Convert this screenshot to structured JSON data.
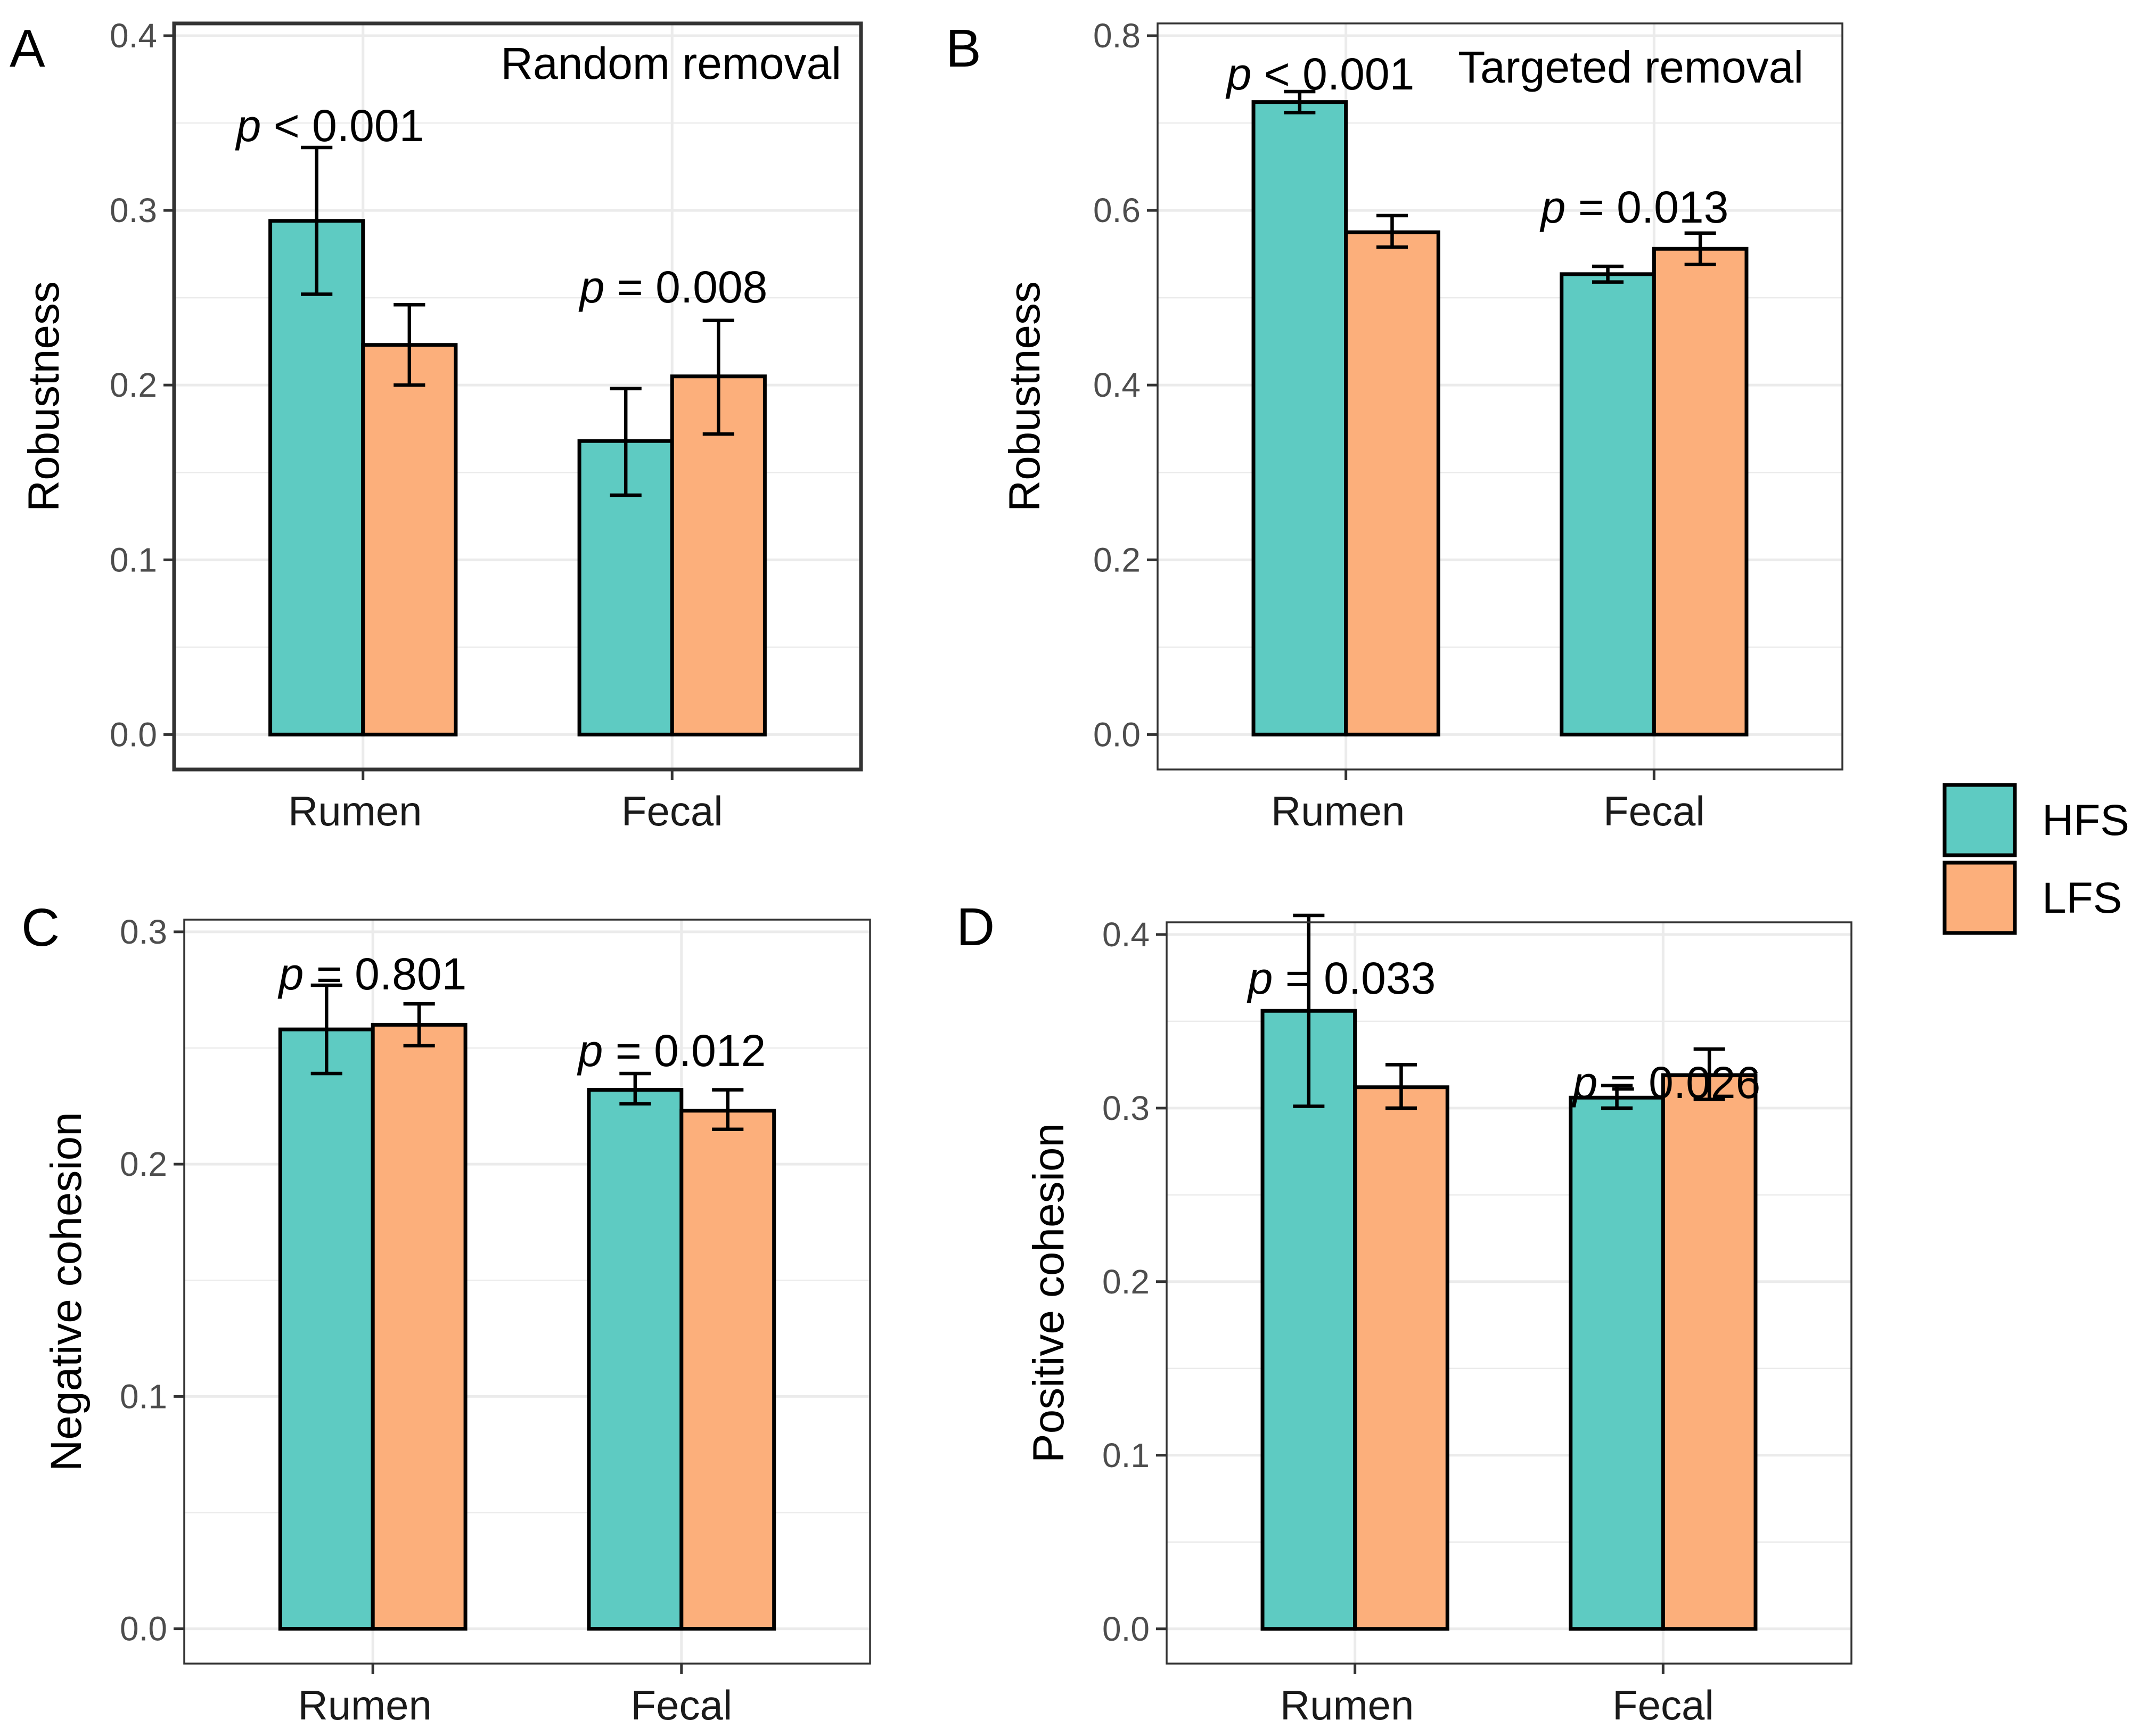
{
  "colors": {
    "HFS": "#5ECBC2",
    "LFS": "#FCAF7B",
    "grid": "#EBEBEB",
    "border": "#333333"
  },
  "legend": {
    "items": [
      {
        "label": "HFS"
      },
      {
        "label": "LFS"
      }
    ]
  },
  "chart_data": [
    {
      "panel": "A",
      "type": "bar",
      "annotation": "Random removal",
      "categories": [
        "Rumen",
        "Fecal"
      ],
      "ylabel": "Robustness",
      "ylim": [
        0,
        0.4
      ],
      "yticks": [
        "0.0",
        "0.1",
        "0.2",
        "0.3",
        "0.4"
      ],
      "series": [
        {
          "name": "HFS",
          "values": [
            0.294,
            0.168
          ],
          "err_low": [
            0.252,
            0.137
          ],
          "err_high": [
            0.336,
            0.198
          ]
        },
        {
          "name": "LFS",
          "values": [
            0.223,
            0.205
          ],
          "err_low": [
            0.2,
            0.172
          ],
          "err_high": [
            0.246,
            0.237
          ]
        }
      ],
      "pvalues": [
        {
          "prefix": "p",
          "text": " < 0.001"
        },
        {
          "prefix": "p",
          "text": " = 0.008"
        }
      ]
    },
    {
      "panel": "B",
      "type": "bar",
      "annotation": "Targeted removal",
      "categories": [
        "Rumen",
        "Fecal"
      ],
      "ylabel": "Robustness",
      "ylim": [
        0,
        0.8
      ],
      "yticks": [
        "0.0",
        "0.2",
        "0.4",
        "0.6",
        "0.8"
      ],
      "series": [
        {
          "name": "HFS",
          "values": [
            0.724,
            0.527
          ],
          "err_low": [
            0.712,
            0.518
          ],
          "err_high": [
            0.736,
            0.536
          ]
        },
        {
          "name": "LFS",
          "values": [
            0.575,
            0.556
          ],
          "err_low": [
            0.558,
            0.538
          ],
          "err_high": [
            0.594,
            0.574
          ]
        }
      ],
      "pvalues": [
        {
          "prefix": "p",
          "text": " < 0.001"
        },
        {
          "prefix": "p",
          "text": " = 0.013"
        }
      ]
    },
    {
      "panel": "C",
      "type": "bar",
      "annotation": "",
      "categories": [
        "Rumen",
        "Fecal"
      ],
      "ylabel": "Negative cohesion",
      "ylim": [
        0,
        0.3
      ],
      "yticks": [
        "0.0",
        "0.1",
        "0.2",
        "0.3"
      ],
      "series": [
        {
          "name": "HFS",
          "values": [
            0.258,
            0.232
          ],
          "err_low": [
            0.239,
            0.226
          ],
          "err_high": [
            0.277,
            0.239
          ]
        },
        {
          "name": "LFS",
          "values": [
            0.26,
            0.223
          ],
          "err_low": [
            0.251,
            0.215
          ],
          "err_high": [
            0.269,
            0.232
          ]
        }
      ],
      "pvalues": [
        {
          "prefix": "p",
          "text": " = 0.801"
        },
        {
          "prefix": "p",
          "text": " = 0.012"
        }
      ]
    },
    {
      "panel": "D",
      "type": "bar",
      "annotation": "",
      "categories": [
        "Rumen",
        "Fecal"
      ],
      "ylabel": "Positive cohesion",
      "ylim": [
        0,
        0.4
      ],
      "yticks": [
        "0.0",
        "0.1",
        "0.2",
        "0.3",
        "0.4"
      ],
      "series": [
        {
          "name": "HFS",
          "values": [
            0.356,
            0.306
          ],
          "err_low": [
            0.301,
            0.3
          ],
          "err_high": [
            0.411,
            0.313
          ]
        },
        {
          "name": "LFS",
          "values": [
            0.312,
            0.319
          ],
          "err_low": [
            0.3,
            0.305
          ],
          "err_high": [
            0.325,
            0.334
          ]
        }
      ],
      "pvalues": [
        {
          "prefix": "p",
          "text": " = 0.033"
        },
        {
          "prefix": "p",
          "text": " = 0.026"
        }
      ]
    }
  ]
}
